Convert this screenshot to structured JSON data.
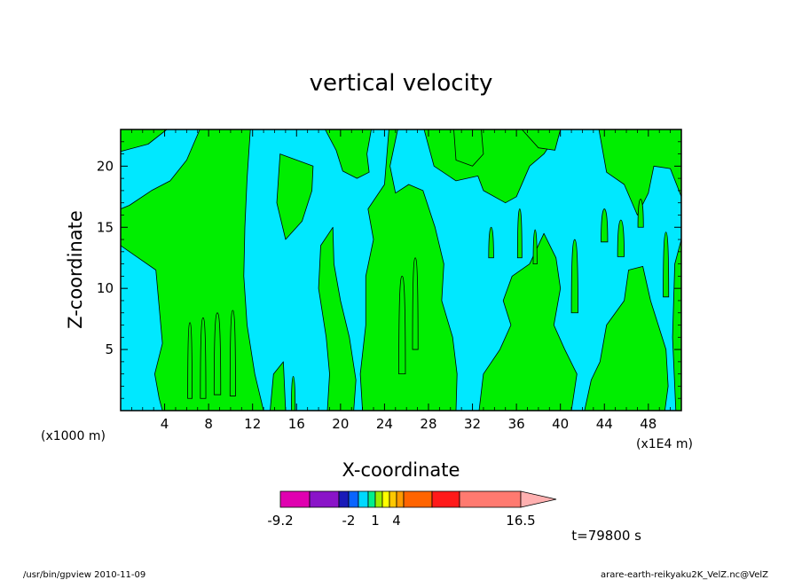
{
  "chart_data": {
    "type": "heatmap",
    "title": "vertical velocity",
    "xlabel": "X-coordinate",
    "ylabel": "Z-coordinate",
    "x_unit_left": "(x1000 m)",
    "x_unit_right": "(x1E4 m)",
    "time_label": "t=79800 s",
    "xlim": [
      0,
      51
    ],
    "ylim": [
      0,
      23
    ],
    "x_ticks": [
      4,
      8,
      12,
      16,
      20,
      24,
      28,
      32,
      36,
      40,
      44,
      48
    ],
    "y_ticks": [
      5,
      10,
      15,
      20
    ],
    "background_color": "#00e8ff",
    "contour_color": "#00ee00",
    "colorbar": {
      "colors": [
        "#e000b0",
        "#8a14c8",
        "#1a1ab8",
        "#0a64ff",
        "#00d8ff",
        "#00f08c",
        "#9aee00",
        "#ffff00",
        "#ffc800",
        "#ff9a00",
        "#ff6400",
        "#ff1a1a",
        "#ff7a70",
        "#ffb0b0"
      ],
      "labels": [
        "-9.2",
        "-2",
        "1",
        "4",
        "16.5"
      ]
    },
    "regions": [
      {
        "points": [
          [
            0,
            13.5
          ],
          [
            1.6,
            12.5
          ],
          [
            3.2,
            11.5
          ],
          [
            3.5,
            8.5
          ],
          [
            3.8,
            5.5
          ],
          [
            3.1,
            3
          ],
          [
            3.5,
            1
          ],
          [
            3.8,
            0
          ],
          [
            13,
            0
          ],
          [
            12.2,
            3
          ],
          [
            11.5,
            7
          ],
          [
            11.2,
            11
          ],
          [
            11.3,
            15
          ],
          [
            11.5,
            19
          ],
          [
            11.8,
            23
          ],
          [
            7.2,
            23
          ],
          [
            6,
            20.5
          ],
          [
            4.5,
            18.8
          ],
          [
            2.8,
            18
          ],
          [
            0.8,
            16.8
          ],
          [
            0,
            16.5
          ]
        ]
      },
      {
        "points": [
          [
            0,
            21.2
          ],
          [
            2.5,
            21.8
          ],
          [
            4.2,
            23
          ],
          [
            0,
            23
          ]
        ]
      },
      {
        "points": [
          [
            13.6,
            0
          ],
          [
            15,
            0
          ],
          [
            14.8,
            4
          ],
          [
            13.9,
            3
          ]
        ]
      },
      {
        "points": [
          [
            17.5,
            20
          ],
          [
            14.5,
            21
          ],
          [
            14.2,
            17
          ],
          [
            15,
            14
          ],
          [
            16.5,
            15.5
          ],
          [
            17.4,
            18
          ]
        ]
      },
      {
        "points": [
          [
            18.6,
            23
          ],
          [
            19.6,
            21.3
          ],
          [
            20.2,
            19.6
          ],
          [
            21.5,
            19
          ],
          [
            22.6,
            19.5
          ],
          [
            22.4,
            21
          ],
          [
            22.8,
            23
          ]
        ]
      },
      {
        "points": [
          [
            24.4,
            23
          ],
          [
            24,
            18.5
          ],
          [
            22.5,
            16.5
          ],
          [
            23,
            14
          ],
          [
            22.3,
            11
          ],
          [
            22.3,
            7
          ],
          [
            21.8,
            3
          ],
          [
            22,
            0
          ],
          [
            30.5,
            0
          ],
          [
            30.6,
            3
          ],
          [
            30.2,
            6
          ],
          [
            29.2,
            9
          ],
          [
            29.4,
            12
          ],
          [
            28.6,
            15
          ],
          [
            27.5,
            18
          ],
          [
            26.2,
            18.5
          ],
          [
            25,
            17.8
          ],
          [
            24.5,
            20
          ],
          [
            25.2,
            23
          ]
        ]
      },
      {
        "points": [
          [
            21.2,
            0
          ],
          [
            21.4,
            2.5
          ],
          [
            20.8,
            6
          ],
          [
            20,
            9
          ],
          [
            19.4,
            12
          ],
          [
            19.3,
            15
          ],
          [
            18.2,
            13.5
          ],
          [
            18,
            10
          ],
          [
            18.7,
            6
          ],
          [
            19,
            3
          ],
          [
            18.8,
            0
          ]
        ]
      },
      {
        "points": [
          [
            27.6,
            23
          ],
          [
            28.5,
            20
          ],
          [
            30.5,
            18.8
          ],
          [
            32.5,
            19.2
          ],
          [
            33,
            18
          ],
          [
            35,
            17
          ],
          [
            36,
            17.5
          ],
          [
            37.2,
            20
          ],
          [
            38.5,
            21
          ],
          [
            40,
            23
          ]
        ]
      },
      {
        "points": [
          [
            32.6,
            0
          ],
          [
            33,
            3
          ],
          [
            34.5,
            5
          ],
          [
            35.5,
            7
          ],
          [
            34.8,
            9
          ],
          [
            35.6,
            11
          ],
          [
            37.2,
            12
          ],
          [
            38.5,
            14.5
          ],
          [
            39.6,
            12.5
          ],
          [
            40,
            10
          ],
          [
            39.4,
            7
          ],
          [
            40.4,
            5
          ],
          [
            41.5,
            3
          ],
          [
            41,
            0
          ]
        ]
      },
      {
        "points": [
          [
            42.2,
            0
          ],
          [
            42.8,
            2.5
          ],
          [
            43.6,
            4
          ],
          [
            44.2,
            7
          ],
          [
            45.8,
            9
          ],
          [
            46.2,
            11.5
          ],
          [
            47.5,
            11.8
          ],
          [
            48.2,
            9
          ],
          [
            48.9,
            7
          ],
          [
            49.6,
            5
          ],
          [
            49.8,
            2
          ],
          [
            49.5,
            0
          ]
        ]
      },
      {
        "points": [
          [
            43.5,
            23
          ],
          [
            44.2,
            19.5
          ],
          [
            45.8,
            18.5
          ],
          [
            47,
            16
          ],
          [
            48,
            17.8
          ],
          [
            48.5,
            20
          ],
          [
            50,
            19.8
          ],
          [
            51,
            17.5
          ],
          [
            51,
            23
          ]
        ]
      },
      {
        "points": [
          [
            36.5,
            23
          ],
          [
            38,
            21.5
          ],
          [
            39.5,
            21.3
          ],
          [
            40,
            23
          ]
        ]
      },
      {
        "points": [
          [
            30.3,
            23
          ],
          [
            30.5,
            20.5
          ],
          [
            32,
            20
          ],
          [
            33,
            21
          ],
          [
            32.8,
            23
          ]
        ]
      },
      {
        "points": [
          [
            50.5,
            0
          ],
          [
            51,
            0
          ],
          [
            51,
            14
          ],
          [
            50.4,
            12
          ],
          [
            50.2,
            6
          ]
        ]
      }
    ],
    "streaks": [
      {
        "x": 6.3,
        "bottom": 1,
        "top": 7.2,
        "width": 0.4
      },
      {
        "x": 7.5,
        "bottom": 1,
        "top": 7.6,
        "width": 0.5
      },
      {
        "x": 8.8,
        "bottom": 1.3,
        "top": 8,
        "width": 0.6
      },
      {
        "x": 10.2,
        "bottom": 1.2,
        "top": 8.2,
        "width": 0.5
      },
      {
        "x": 25.6,
        "bottom": 3,
        "top": 11,
        "width": 0.6
      },
      {
        "x": 26.8,
        "bottom": 5,
        "top": 12.5,
        "width": 0.5
      },
      {
        "x": 36.3,
        "bottom": 12.5,
        "top": 16.5,
        "width": 0.4
      },
      {
        "x": 37.7,
        "bottom": 12,
        "top": 14.8,
        "width": 0.35
      },
      {
        "x": 44,
        "bottom": 13.8,
        "top": 16.5,
        "width": 0.6
      },
      {
        "x": 45.5,
        "bottom": 12.6,
        "top": 15.6,
        "width": 0.6
      },
      {
        "x": 47.3,
        "bottom": 15,
        "top": 17.3,
        "width": 0.5
      },
      {
        "x": 49.6,
        "bottom": 9.3,
        "top": 14.6,
        "width": 0.5
      },
      {
        "x": 15.7,
        "bottom": 0,
        "top": 2.8,
        "width": 0.35
      },
      {
        "x": 33.7,
        "bottom": 12.5,
        "top": 15,
        "width": 0.45
      },
      {
        "x": 41.3,
        "bottom": 8,
        "top": 14,
        "width": 0.6
      }
    ]
  },
  "footer": {
    "left": "/usr/bin/gpview   2010-11-09",
    "right": "arare-earth-reikyaku2K_VelZ.nc@VelZ"
  }
}
